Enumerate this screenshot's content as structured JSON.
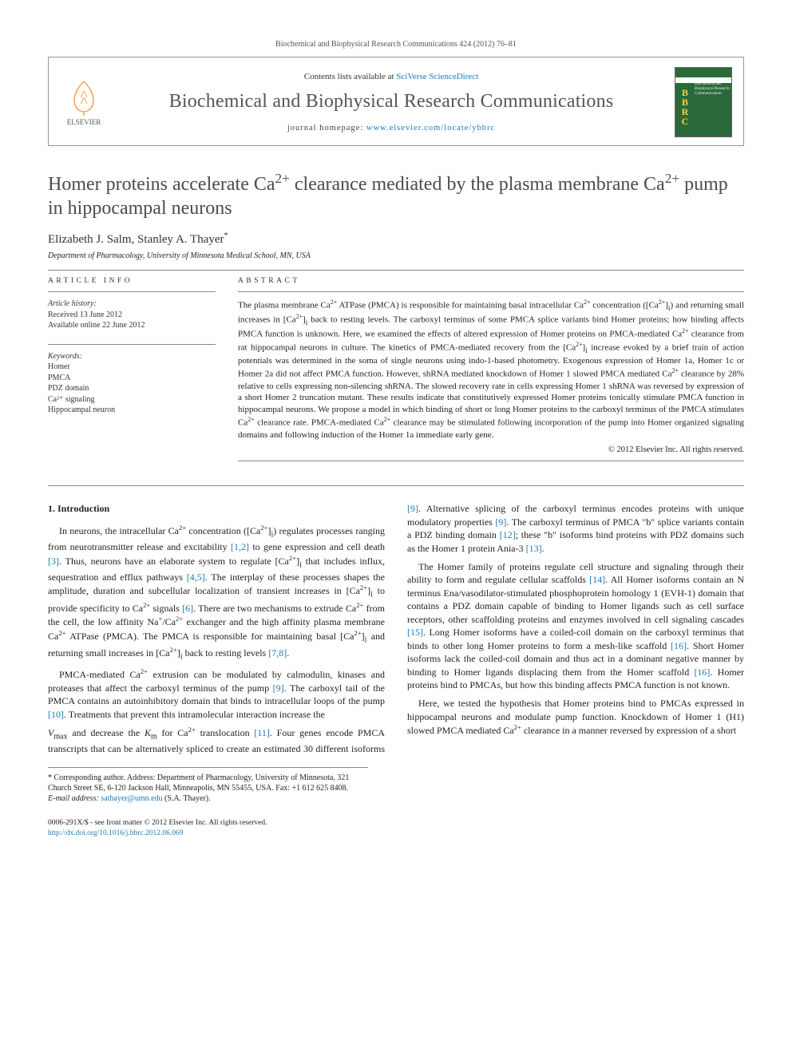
{
  "citation": "Biochemical and Biophysical Research Communications 424 (2012) 76–81",
  "header": {
    "contents_prefix": "Contents lists available at ",
    "contents_link": "SciVerse ScienceDirect",
    "journal_name": "Biochemical and Biophysical Research Communications",
    "homepage_prefix": "journal homepage: ",
    "homepage_link": "www.elsevier.com/locate/ybbrc",
    "publisher": "ELSEVIER",
    "cover_side": "Biochemical and Biophysical Research Communications"
  },
  "title_html": "Homer proteins accelerate Ca<sup>2+</sup> clearance mediated by the plasma membrane Ca<sup>2+</sup> pump in hippocampal neurons",
  "authors": "Elizabeth J. Salm, Stanley A. Thayer",
  "corr_marker": "*",
  "affiliation": "Department of Pharmacology, University of Minnesota Medical School, MN, USA",
  "article_info": {
    "head": "ARTICLE INFO",
    "history_head": "Article history:",
    "received": "Received 13 June 2012",
    "online": "Available online 22 June 2012",
    "keywords_head": "Keywords:",
    "keywords": [
      "Homer",
      "PMCA",
      "PDZ domain",
      "Ca²⁺ signaling",
      "Hippocampal neuron"
    ]
  },
  "abstract": {
    "head": "ABSTRACT",
    "text_html": "The plasma membrane Ca<sup>2+</sup> ATPase (PMCA) is responsible for maintaining basal intracellular Ca<sup>2+</sup> concentration ([Ca<sup>2+</sup>]<sub>i</sub>) and returning small increases in [Ca<sup>2+</sup>]<sub>i</sub> back to resting levels. The carboxyl terminus of some PMCA splice variants bind Homer proteins; how binding affects PMCA function is unknown. Here, we examined the effects of altered expression of Homer proteins on PMCA-mediated Ca<sup>2+</sup> clearance from rat hippocampal neurons in culture. The kinetics of PMCA-mediated recovery from the [Ca<sup>2+</sup>]<sub>i</sub> increase evoked by a brief train of action potentials was determined in the soma of single neurons using indo-1-based photometry. Exogenous expression of Homer 1a, Homer 1c or Homer 2a did not affect PMCA function. However, shRNA mediated knockdown of Homer 1 slowed PMCA mediated Ca<sup>2+</sup> clearance by 28% relative to cells expressing non-silencing shRNA. The slowed recovery rate in cells expressing Homer 1 shRNA was reversed by expression of a short Homer 2 truncation mutant. These results indicate that constitutively expressed Homer proteins tonically stimulate PMCA function in hippocampal neurons. We propose a model in which binding of short or long Homer proteins to the carboxyl terminus of the PMCA stimulates Ca<sup>2+</sup> clearance rate. PMCA-mediated Ca<sup>2+</sup> clearance may be stimulated following incorporation of the pump into Homer organized signaling domains and following induction of the Homer 1a immediate early gene.",
    "copyright": "© 2012 Elsevier Inc. All rights reserved."
  },
  "body": {
    "intro_head": "1. Introduction",
    "p1_html": "In neurons, the intracellular Ca<sup>2+</sup> concentration ([Ca<sup>2+</sup>]<sub>i</sub>) regulates processes ranging from neurotransmitter release and excitability <span class=\"ref\">[1,2]</span> to gene expression and cell death <span class=\"ref\">[3]</span>. Thus, neurons have an elaborate system to regulate [Ca<sup>2+</sup>]<sub>i</sub> that includes influx, sequestration and efflux pathways <span class=\"ref\">[4,5]</span>. The interplay of these processes shapes the amplitude, duration and subcellular localization of transient increases in [Ca<sup>2+</sup>]<sub>i</sub> to provide specificity to Ca<sup>2+</sup> signals <span class=\"ref\">[6]</span>. There are two mechanisms to extrude Ca<sup>2+</sup> from the cell, the low affinity Na<sup>+</sup>/Ca<sup>2+</sup> exchanger and the high affinity plasma membrane Ca<sup>2+</sup> ATPase (PMCA). The PMCA is responsible for maintaining basal [Ca<sup>2+</sup>]<sub>i</sub> and returning small increases in [Ca<sup>2+</sup>]<sub>i</sub> back to resting levels <span class=\"ref\">[7,8]</span>.",
    "p2_html": "PMCA-mediated Ca<sup>2+</sup> extrusion can be modulated by calmodulin, kinases and proteases that affect the carboxyl terminus of the pump <span class=\"ref\">[9]</span>. The carboxyl tail of the PMCA contains an autoinhibitory domain that binds to intracellular loops of the pump <span class=\"ref\">[10]</span>. Treatments that prevent this intramolecular interaction increase the",
    "p3_html": "<i>V</i><sub>max</sub> and decrease the <i>K</i><sub>m</sub> for Ca<sup>2+</sup> translocation <span class=\"ref\">[11]</span>. Four genes encode PMCA transcripts that can be alternatively spliced to create an estimated 30 different isoforms <span class=\"ref\">[9]</span>. Alternative splicing of the carboxyl terminus encodes proteins with unique modulatory properties <span class=\"ref\">[9]</span>. The carboxyl terminus of PMCA \"b\" splice variants contain a PDZ binding domain <span class=\"ref\">[12]</span>; these \"b\" isoforms bind proteins with PDZ domains such as the Homer 1 protein Ania-3 <span class=\"ref\">[13]</span>.",
    "p4_html": "The Homer family of proteins regulate cell structure and signaling through their ability to form and regulate cellular scaffolds <span class=\"ref\">[14]</span>. All Homer isoforms contain an N terminus Ena/vasodilator-stimulated phosphoprotein homology 1 (EVH-1) domain that contains a PDZ domain capable of binding to Homer ligands such as cell surface receptors, other scaffolding proteins and enzymes involved in cell signaling cascades <span class=\"ref\">[15]</span>. Long Homer isoforms have a coiled-coil domain on the carboxyl terminus that binds to other long Homer proteins to form a mesh-like scaffold <span class=\"ref\">[16]</span>. Short Homer isoforms lack the coiled-coil domain and thus act in a dominant negative manner by binding to Homer ligands displacing them from the Homer scaffold <span class=\"ref\">[16]</span>. Homer proteins bind to PMCAs, but how this binding affects PMCA function is not known.",
    "p5_html": "Here, we tested the hypothesis that Homer proteins bind to PMCAs expressed in hippocampal neurons and modulate pump function. Knockdown of Homer 1 (H1) slowed PMCA mediated Ca<sup>2+</sup> clearance in a manner reversed by expression of a short"
  },
  "footnotes": {
    "corr": "* Corresponding author. Address: Department of Pharmacology, University of Minnesota, 321 Church Street SE, 6-120 Jackson Hall, Minneapolis, MN 55455, USA. Fax: +1 612 625 8408.",
    "email_label": "E-mail address:",
    "email": "sathayer@umn.edu",
    "email_suffix": "(S.A. Thayer)."
  },
  "bottom": {
    "line1": "0006-291X/$ - see front matter © 2012 Elsevier Inc. All rights reserved.",
    "doi": "http://dx.doi.org/10.1016/j.bbrc.2012.06.069"
  },
  "colors": {
    "link": "#1a7bb9",
    "text": "#222222",
    "rule": "#888888",
    "elsevier": "#ff6600"
  }
}
